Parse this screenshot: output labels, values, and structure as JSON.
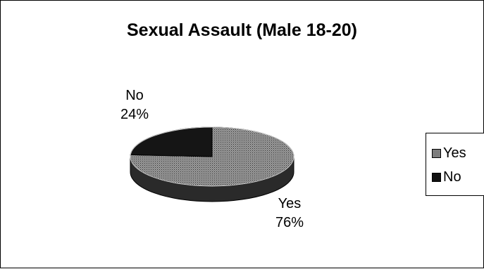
{
  "chart_data": {
    "type": "pie",
    "title": "Sexual Assault (Male 18-20)",
    "categories": [
      "Yes",
      "No"
    ],
    "values": [
      76,
      24
    ],
    "data_labels": [
      {
        "name": "Yes",
        "percent": "76%"
      },
      {
        "name": "No",
        "percent": "24%"
      }
    ],
    "legend_position": "right",
    "colors": {
      "Yes": "#8a8a8a",
      "No": "#111111"
    }
  }
}
